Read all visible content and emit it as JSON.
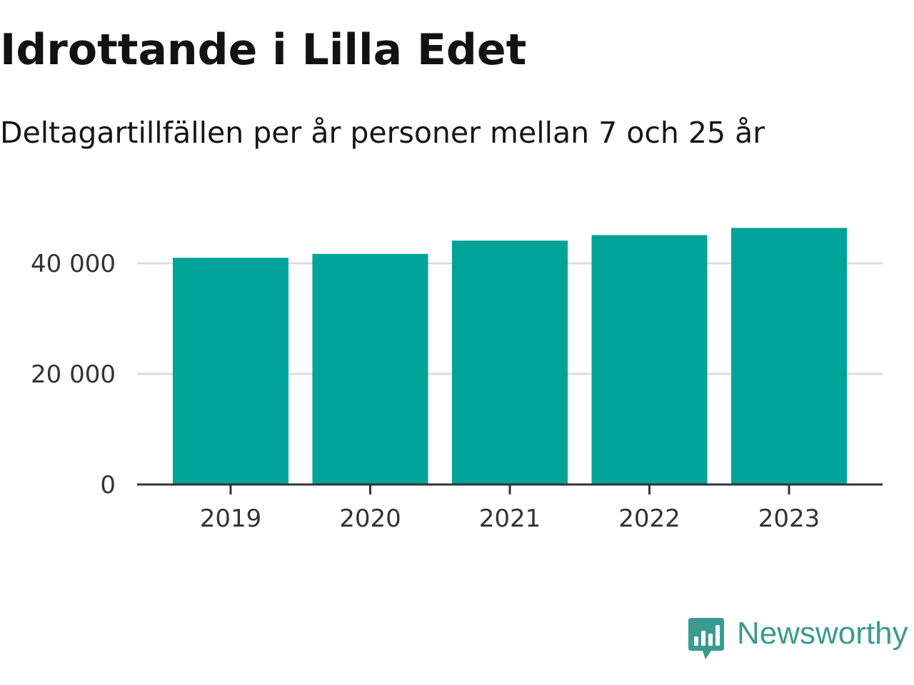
{
  "title": "Idrottande i Lilla Edet",
  "subtitle": "Deltagartillfällen per år personer mellan 7 och 25 år",
  "brand": {
    "name": "Newsworthy",
    "color": "#3a9b91",
    "icon": "bar-chart-speech-bubble-icon"
  },
  "colors": {
    "bar": "#00a398",
    "grid": "#dddddd",
    "axis": "#333333",
    "text": "#121212"
  },
  "chart_data": {
    "type": "bar",
    "title": "Idrottande i Lilla Edet",
    "subtitle": "Deltagartillfällen per år personer mellan 7 och 25 år",
    "categories": [
      "2019",
      "2020",
      "2021",
      "2022",
      "2023"
    ],
    "values": [
      41000,
      41700,
      44100,
      45100,
      46400
    ],
    "xlabel": "",
    "ylabel": "",
    "ylim": [
      0,
      48000
    ],
    "yticks": [
      0,
      20000,
      40000
    ],
    "ytick_labels": [
      "0",
      "20 000",
      "40 000"
    ],
    "grid": true,
    "legend": "none"
  }
}
